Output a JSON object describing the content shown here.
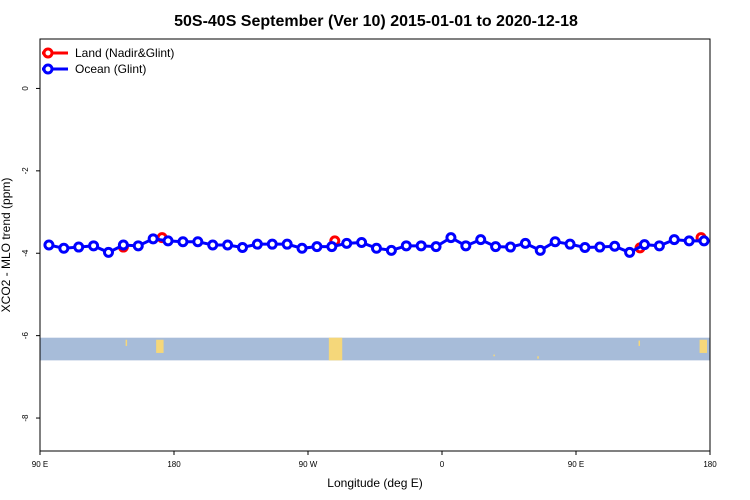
{
  "chart_data": {
    "type": "line",
    "title": "50S-40S September (Ver 10)   2015-01-01 to 2020-12-18",
    "xlabel": "Longitude (deg E)",
    "ylabel": "XCO2 - MLO trend (ppm)",
    "xlim": [
      90,
      540
    ],
    "ylim": [
      -8.8,
      1.2
    ],
    "x_ticks": [
      {
        "value": 90,
        "label": "90 E"
      },
      {
        "value": 180,
        "label": "180"
      },
      {
        "value": 270,
        "label": "90 W"
      },
      {
        "value": 360,
        "label": "0"
      },
      {
        "value": 450,
        "label": "90 E"
      },
      {
        "value": 540,
        "label": "180"
      }
    ],
    "y_ticks": [
      {
        "value": 0,
        "label": "0"
      },
      {
        "value": -2,
        "label": "-2"
      },
      {
        "value": -4,
        "label": "-4"
      },
      {
        "value": -6,
        "label": "-6"
      },
      {
        "value": -8,
        "label": "-8"
      }
    ],
    "legend_position": "top-left",
    "series": [
      {
        "name": "Land (Nadir&Glint)",
        "color": "#ff0000",
        "points": [
          {
            "x": 146,
            "y": -3.85
          },
          {
            "x": 172,
            "y": -3.62
          },
          {
            "x": 288,
            "y": -3.7
          },
          {
            "x": 493,
            "y": -3.87
          },
          {
            "x": 534,
            "y": -3.62
          }
        ]
      },
      {
        "name": "Ocean (Glint)",
        "color": "#0000ff",
        "x": [
          96,
          106,
          116,
          126,
          136,
          146,
          156,
          166,
          176,
          186,
          196,
          206,
          216,
          226,
          236,
          246,
          256,
          266,
          276,
          286,
          296,
          306,
          316,
          326,
          336,
          346,
          356,
          366,
          376,
          386,
          396,
          406,
          416,
          426,
          436,
          446,
          456,
          466,
          476,
          486,
          496,
          506,
          516,
          526,
          536
        ],
        "values": [
          -3.8,
          -3.88,
          -3.85,
          -3.82,
          -3.98,
          -3.8,
          -3.82,
          -3.65,
          -3.7,
          -3.72,
          -3.72,
          -3.8,
          -3.8,
          -3.86,
          -3.78,
          -3.78,
          -3.78,
          -3.88,
          -3.84,
          -3.84,
          -3.76,
          -3.74,
          -3.88,
          -3.93,
          -3.82,
          -3.82,
          -3.84,
          -3.62,
          -3.82,
          -3.67,
          -3.84,
          -3.85,
          -3.76,
          -3.93,
          -3.72,
          -3.78,
          -3.86,
          -3.85,
          -3.83,
          -3.98,
          -3.79,
          -3.82,
          -3.67,
          -3.7,
          -3.7
        ]
      }
    ],
    "map_band": {
      "y_range": [
        -6.6,
        -6.05
      ],
      "ocean_color": "#a7bcd9",
      "land_color": "#f5d77a",
      "land_patches": [
        {
          "x": [
            147.5,
            148.5
          ],
          "y": [
            -6.1,
            -6.25
          ]
        },
        {
          "x": [
            168,
            173
          ],
          "y": [
            -6.1,
            -6.42
          ]
        },
        {
          "x": [
            284,
            293
          ],
          "y": [
            -6.05,
            -6.6
          ]
        },
        {
          "x": [
            394.5,
            395.5
          ],
          "y": [
            -6.46,
            -6.5
          ]
        },
        {
          "x": [
            424,
            425
          ],
          "y": [
            -6.5,
            -6.56
          ]
        },
        {
          "x": [
            492,
            493
          ],
          "y": [
            -6.12,
            -6.25
          ]
        },
        {
          "x": [
            533,
            538
          ],
          "y": [
            -6.1,
            -6.42
          ]
        }
      ]
    }
  }
}
